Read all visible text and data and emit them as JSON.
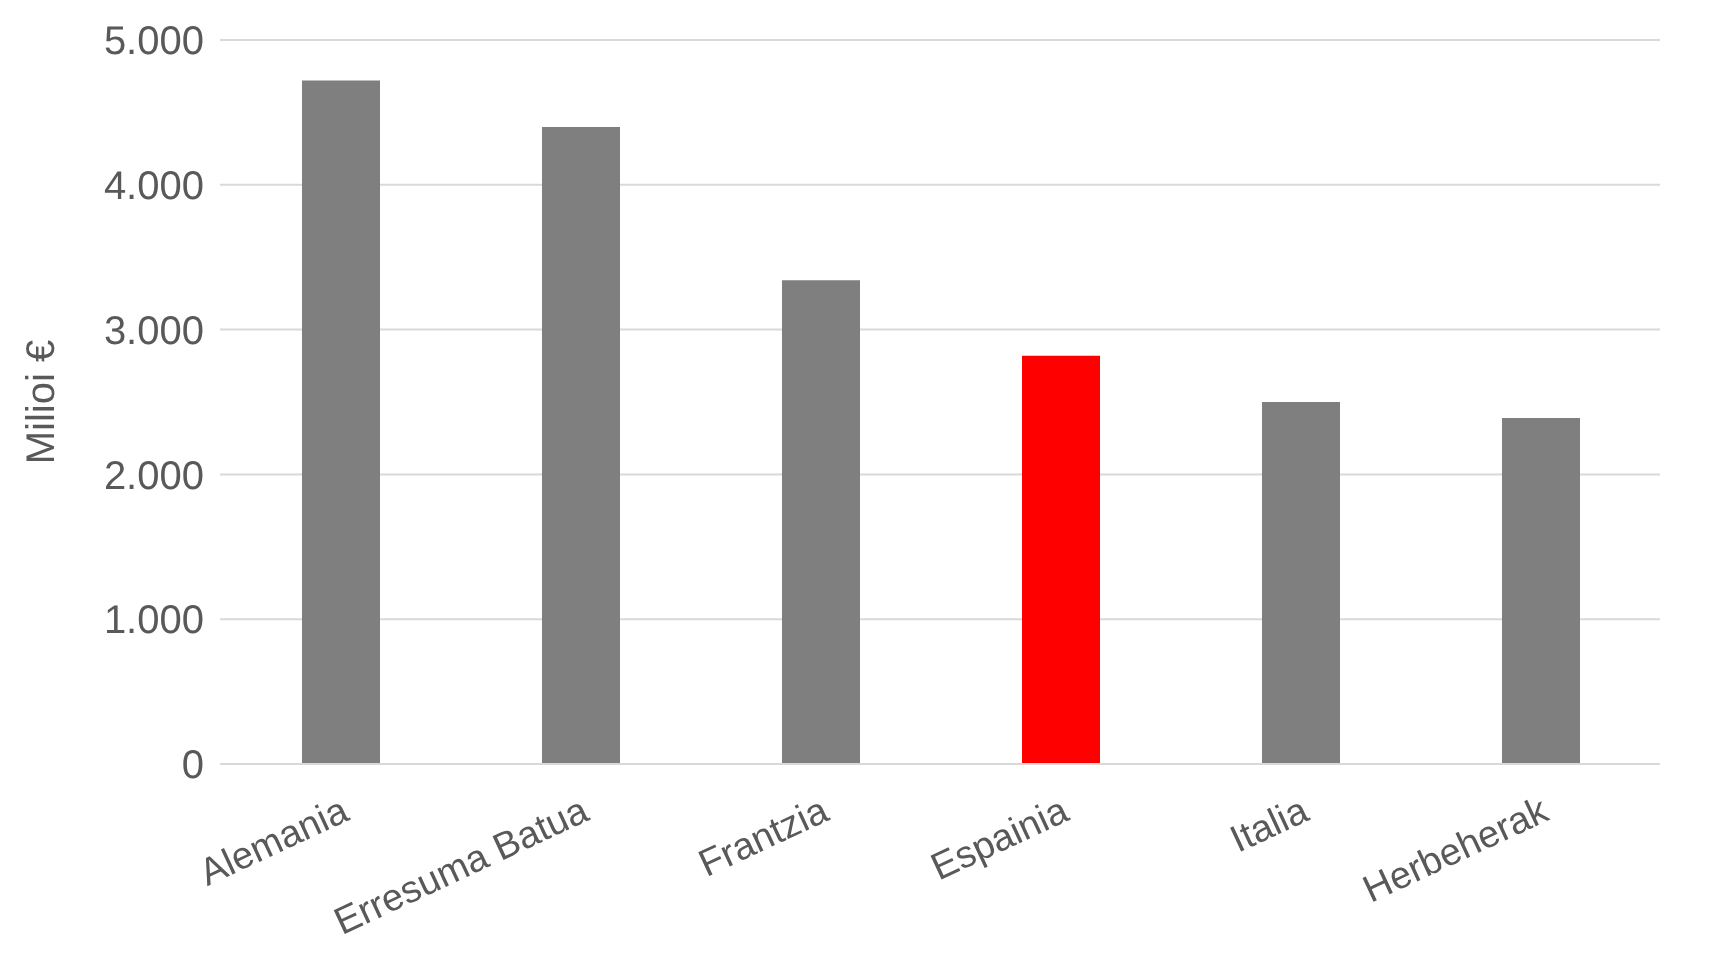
{
  "chart_data": {
    "type": "bar",
    "ylabel": "Milioi €",
    "categories": [
      "Alemania",
      "Erresuma Batua",
      "Frantzia",
      "Espainia",
      "Italia",
      "Herbeherak"
    ],
    "values": [
      4720,
      4400,
      3340,
      2820,
      2500,
      2390
    ],
    "colors": [
      "#7f7f7f",
      "#7f7f7f",
      "#7f7f7f",
      "#ff0000",
      "#7f7f7f",
      "#7f7f7f"
    ],
    "ylim": [
      0,
      5000
    ],
    "yticks": [
      {
        "value": 0,
        "label": "0"
      },
      {
        "value": 1000,
        "label": "1.000"
      },
      {
        "value": 2000,
        "label": "2.000"
      },
      {
        "value": 3000,
        "label": "3.000"
      },
      {
        "value": 4000,
        "label": "4.000"
      },
      {
        "value": 5000,
        "label": "5.000"
      }
    ],
    "grid": "y"
  }
}
